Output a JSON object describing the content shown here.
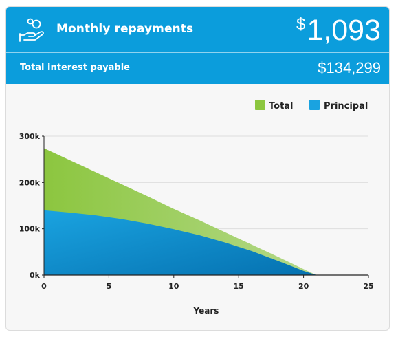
{
  "header": {
    "title": "Monthly repayments",
    "currency_symbol": "$",
    "amount": "1,093",
    "subtitle": "Total interest payable",
    "interest_amount": "$134,299",
    "icon": "hand-coins-icon",
    "background_color": "#0b9ddc"
  },
  "chart_data": {
    "type": "area",
    "xlabel": "Years",
    "ylabel": "",
    "xlim": [
      0,
      25
    ],
    "ylim": [
      0,
      300000
    ],
    "x_ticks": [
      0,
      5,
      10,
      15,
      20,
      25
    ],
    "y_ticks": [
      0,
      100000,
      200000,
      300000
    ],
    "y_tick_labels": [
      "0k",
      "100k",
      "200k",
      "300k"
    ],
    "grid": true,
    "legend_position": "top-right",
    "series": [
      {
        "name": "Total",
        "color": "#8cc63f",
        "x": [
          0,
          2,
          4,
          6,
          8,
          10,
          12,
          14,
          16,
          18,
          20,
          21
        ],
        "values": [
          274000,
          248000,
          222000,
          196000,
          170000,
          143000,
          118000,
          92000,
          66000,
          40000,
          13000,
          0
        ]
      },
      {
        "name": "Principal",
        "color": "#1aa3e0",
        "x": [
          0,
          2,
          4,
          6,
          8,
          10,
          12,
          14,
          16,
          18,
          20,
          21
        ],
        "values": [
          140000,
          135000,
          129000,
          121000,
          111000,
          99000,
          86000,
          70000,
          52000,
          31000,
          9000,
          0
        ]
      }
    ]
  }
}
